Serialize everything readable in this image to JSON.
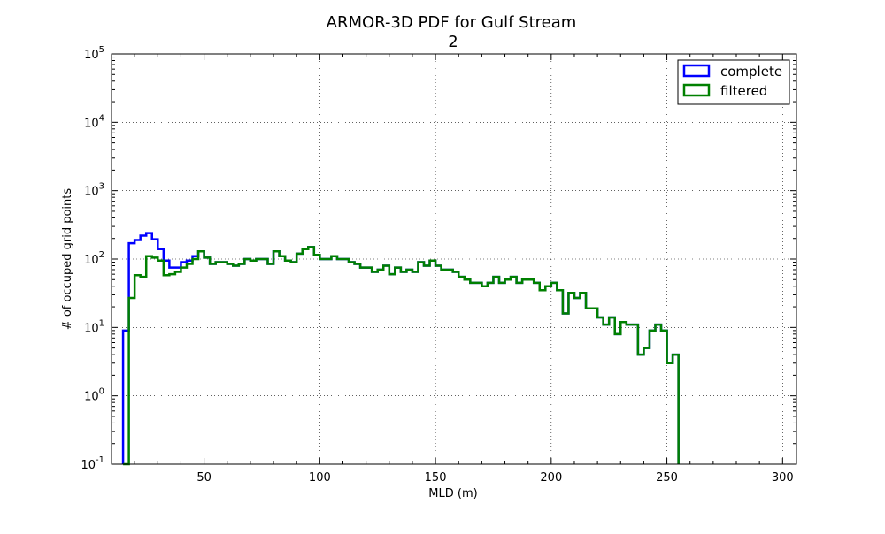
{
  "chart_data": {
    "type": "histogram-step",
    "title_line1": "ARMOR-3D PDF for Gulf Stream",
    "title_line2": "2",
    "xlabel": "MLD (m)",
    "ylabel": "# of occuped grid points",
    "xlim": [
      10,
      306
    ],
    "ylim": [
      0.1,
      100000
    ],
    "yscale": "log",
    "grid": true,
    "legend_position": "top-right",
    "x_ticks": [
      50,
      100,
      150,
      200,
      250,
      300
    ],
    "x_tick_labels": [
      "50",
      "100",
      "150",
      "200",
      "250",
      "300"
    ],
    "y_ticks": [
      {
        "value": 0.1,
        "base": "10",
        "exp": "-1"
      },
      {
        "value": 1,
        "base": "10",
        "exp": "0"
      },
      {
        "value": 10,
        "base": "10",
        "exp": "1"
      },
      {
        "value": 100,
        "base": "10",
        "exp": "2"
      },
      {
        "value": 1000,
        "base": "10",
        "exp": "3"
      },
      {
        "value": 10000,
        "base": "10",
        "exp": "4"
      },
      {
        "value": 100000,
        "base": "10",
        "exp": "5"
      }
    ],
    "bin_start": 15,
    "bin_width": 2.5,
    "series": [
      {
        "name": "complete",
        "color": "#0000ff",
        "values": [
          9,
          170,
          190,
          220,
          240,
          195,
          140,
          95,
          75,
          75,
          90,
          95,
          110,
          130,
          105,
          85,
          90,
          90,
          85,
          80,
          85,
          100,
          95,
          100,
          100,
          85,
          130,
          110,
          95,
          90,
          120,
          140,
          150,
          115,
          100,
          100,
          110,
          100,
          100,
          90,
          85,
          75,
          75,
          65,
          70,
          80,
          60,
          75,
          65,
          70,
          65,
          90,
          80,
          95,
          80,
          70,
          70,
          65,
          55,
          50,
          45,
          45,
          40,
          45,
          55,
          45,
          50,
          55,
          45,
          50,
          50,
          45,
          35,
          40,
          45,
          35,
          16,
          32,
          27,
          32,
          19,
          19,
          14,
          11,
          14,
          8,
          12,
          11,
          11,
          4,
          5,
          9,
          11,
          9,
          3,
          4
        ]
      },
      {
        "name": "filtered",
        "color": "#008000",
        "values": [
          0.1,
          27,
          58,
          55,
          110,
          105,
          95,
          58,
          60,
          65,
          75,
          85,
          100,
          130,
          105,
          85,
          90,
          90,
          85,
          80,
          85,
          100,
          95,
          100,
          100,
          85,
          130,
          110,
          95,
          90,
          120,
          140,
          150,
          115,
          100,
          100,
          110,
          100,
          100,
          90,
          85,
          75,
          75,
          65,
          70,
          80,
          60,
          75,
          65,
          70,
          65,
          90,
          80,
          95,
          80,
          70,
          70,
          65,
          55,
          50,
          45,
          45,
          40,
          45,
          55,
          45,
          50,
          55,
          45,
          50,
          50,
          45,
          35,
          40,
          45,
          35,
          16,
          32,
          27,
          32,
          19,
          19,
          14,
          11,
          14,
          8,
          12,
          11,
          11,
          4,
          5,
          9,
          11,
          9,
          3,
          4
        ]
      }
    ]
  }
}
